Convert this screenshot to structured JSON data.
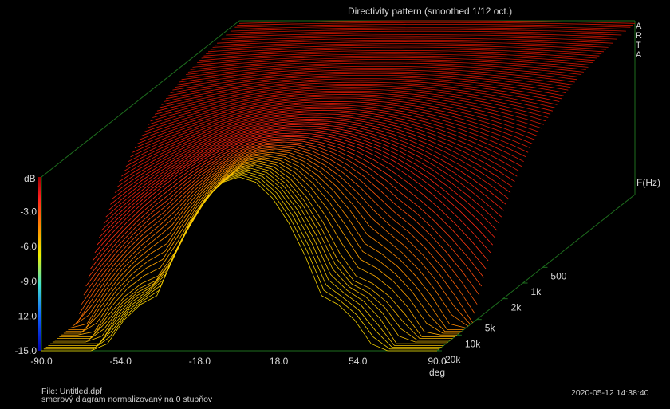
{
  "window": {
    "title": "Directivity pattern (smoothed 1/12 oct.)",
    "brand_letters": [
      "A",
      "R",
      "T",
      "A"
    ]
  },
  "chart_data": {
    "type": "surface",
    "title": "Directivity pattern (smoothed 1/12 oct.)",
    "xlabel": "deg",
    "ylabel": "dB",
    "zlabel": "F(Hz)",
    "x_ticks": [
      "-90.0",
      "-54.0",
      "-18.0",
      "18.0",
      "54.0",
      "90.0"
    ],
    "xlim": [
      -90,
      90
    ],
    "y_ticks": [
      "-3.0",
      "-6.0",
      "-9.0",
      "-12.0",
      "-15.0"
    ],
    "ylim": [
      -15,
      0
    ],
    "z_ticks": [
      "500",
      "1k",
      "2k",
      "5k",
      "10k",
      "20k"
    ],
    "z_scale": "log",
    "colorbar": {
      "ticks": [
        "-3.0",
        "-6.0",
        "-9.0",
        "-12.0",
        "-15.0"
      ],
      "colors": [
        "#b00000",
        "#ff2020",
        "#ff9000",
        "#f0f000",
        "#40e0d0",
        "#1060ff",
        "#0000c0"
      ]
    }
  },
  "footer": {
    "file": "File: Untitled.dpf",
    "description": "smerový diagram normalizovaný na 0 stupňov",
    "timestamp": "2020-05-12  14:38:40"
  }
}
